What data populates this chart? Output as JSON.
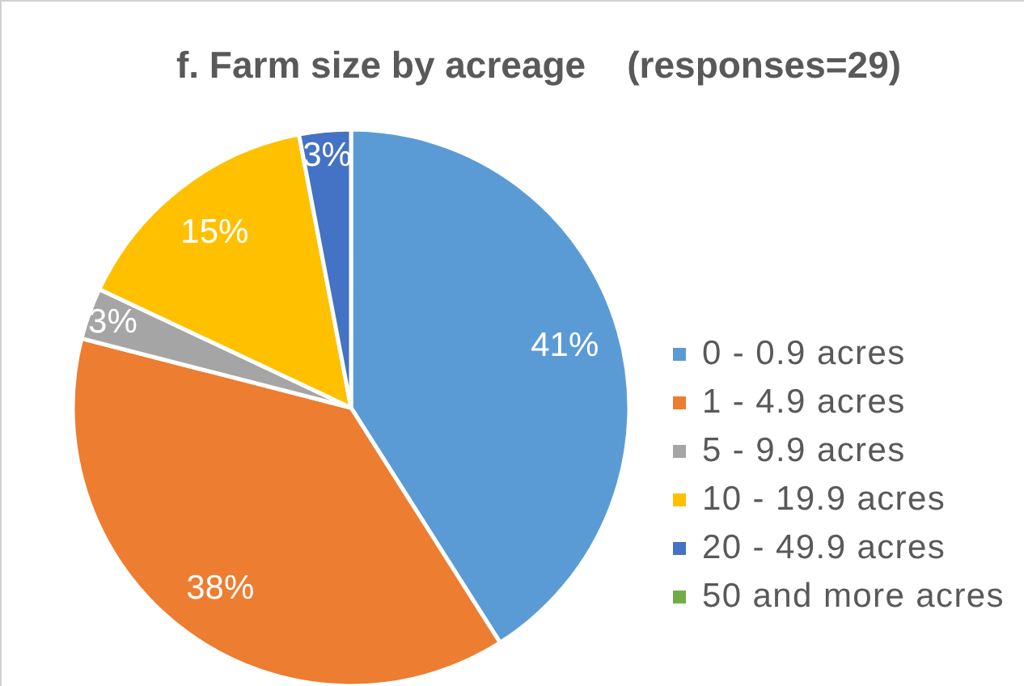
{
  "chart_data": {
    "type": "pie",
    "title": "f. Farm size by acreage    (responses=29)",
    "categories": [
      "0 - 0.9 acres",
      "1 - 4.9 acres",
      "5 - 9.9 acres",
      "10 - 19.9 acres",
      "20 - 49.9 acres",
      "50 and more acres"
    ],
    "values": [
      41,
      38,
      3,
      15,
      3,
      0
    ],
    "colors": [
      "#5b9bd5",
      "#ed7d31",
      "#a5a5a5",
      "#ffc000",
      "#4472c4",
      "#70ad47"
    ],
    "value_labels": [
      "41%",
      "38%",
      "3%",
      "15%",
      "3%",
      null
    ],
    "legend": "right"
  }
}
